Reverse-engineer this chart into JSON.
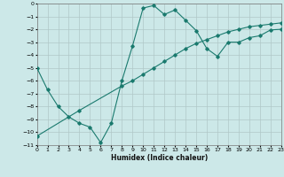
{
  "xlabel": "Humidex (Indice chaleur)",
  "bg_color": "#cce8e8",
  "line_color": "#1a7a6e",
  "grid_color": "#b0c8c8",
  "xlim": [
    0,
    23
  ],
  "ylim": [
    -11,
    0
  ],
  "xticks": [
    0,
    1,
    2,
    3,
    4,
    5,
    6,
    7,
    8,
    9,
    10,
    11,
    12,
    13,
    14,
    15,
    16,
    17,
    18,
    19,
    20,
    21,
    22,
    23
  ],
  "yticks": [
    0,
    -1,
    -2,
    -3,
    -4,
    -5,
    -6,
    -7,
    -8,
    -9,
    -10,
    -11
  ],
  "line1_x": [
    0,
    1,
    2,
    3,
    4,
    5,
    6,
    7,
    8,
    9,
    10,
    11,
    12,
    13,
    14,
    15,
    16,
    17,
    18,
    19,
    20,
    21,
    22,
    23
  ],
  "line1_y": [
    -5,
    -6.7,
    -8,
    -8.8,
    -9.3,
    -9.6,
    -10.8,
    -9.3,
    -6,
    -3.3,
    -0.35,
    -0.15,
    -0.85,
    -0.5,
    -1.3,
    -2.1,
    -3.5,
    -4.1,
    -3.0,
    -3.0,
    -2.65,
    -2.5,
    -2.05,
    -2.0
  ],
  "line2_x": [
    0,
    4,
    8,
    9,
    10,
    11,
    12,
    13,
    14,
    15,
    16,
    17,
    18,
    19,
    20,
    21,
    22,
    23
  ],
  "line2_y": [
    -10.3,
    -8.3,
    -6.4,
    -6.0,
    -5.5,
    -5.0,
    -4.5,
    -4.0,
    -3.5,
    -3.1,
    -2.8,
    -2.5,
    -2.2,
    -2.0,
    -1.8,
    -1.7,
    -1.6,
    -1.5
  ]
}
